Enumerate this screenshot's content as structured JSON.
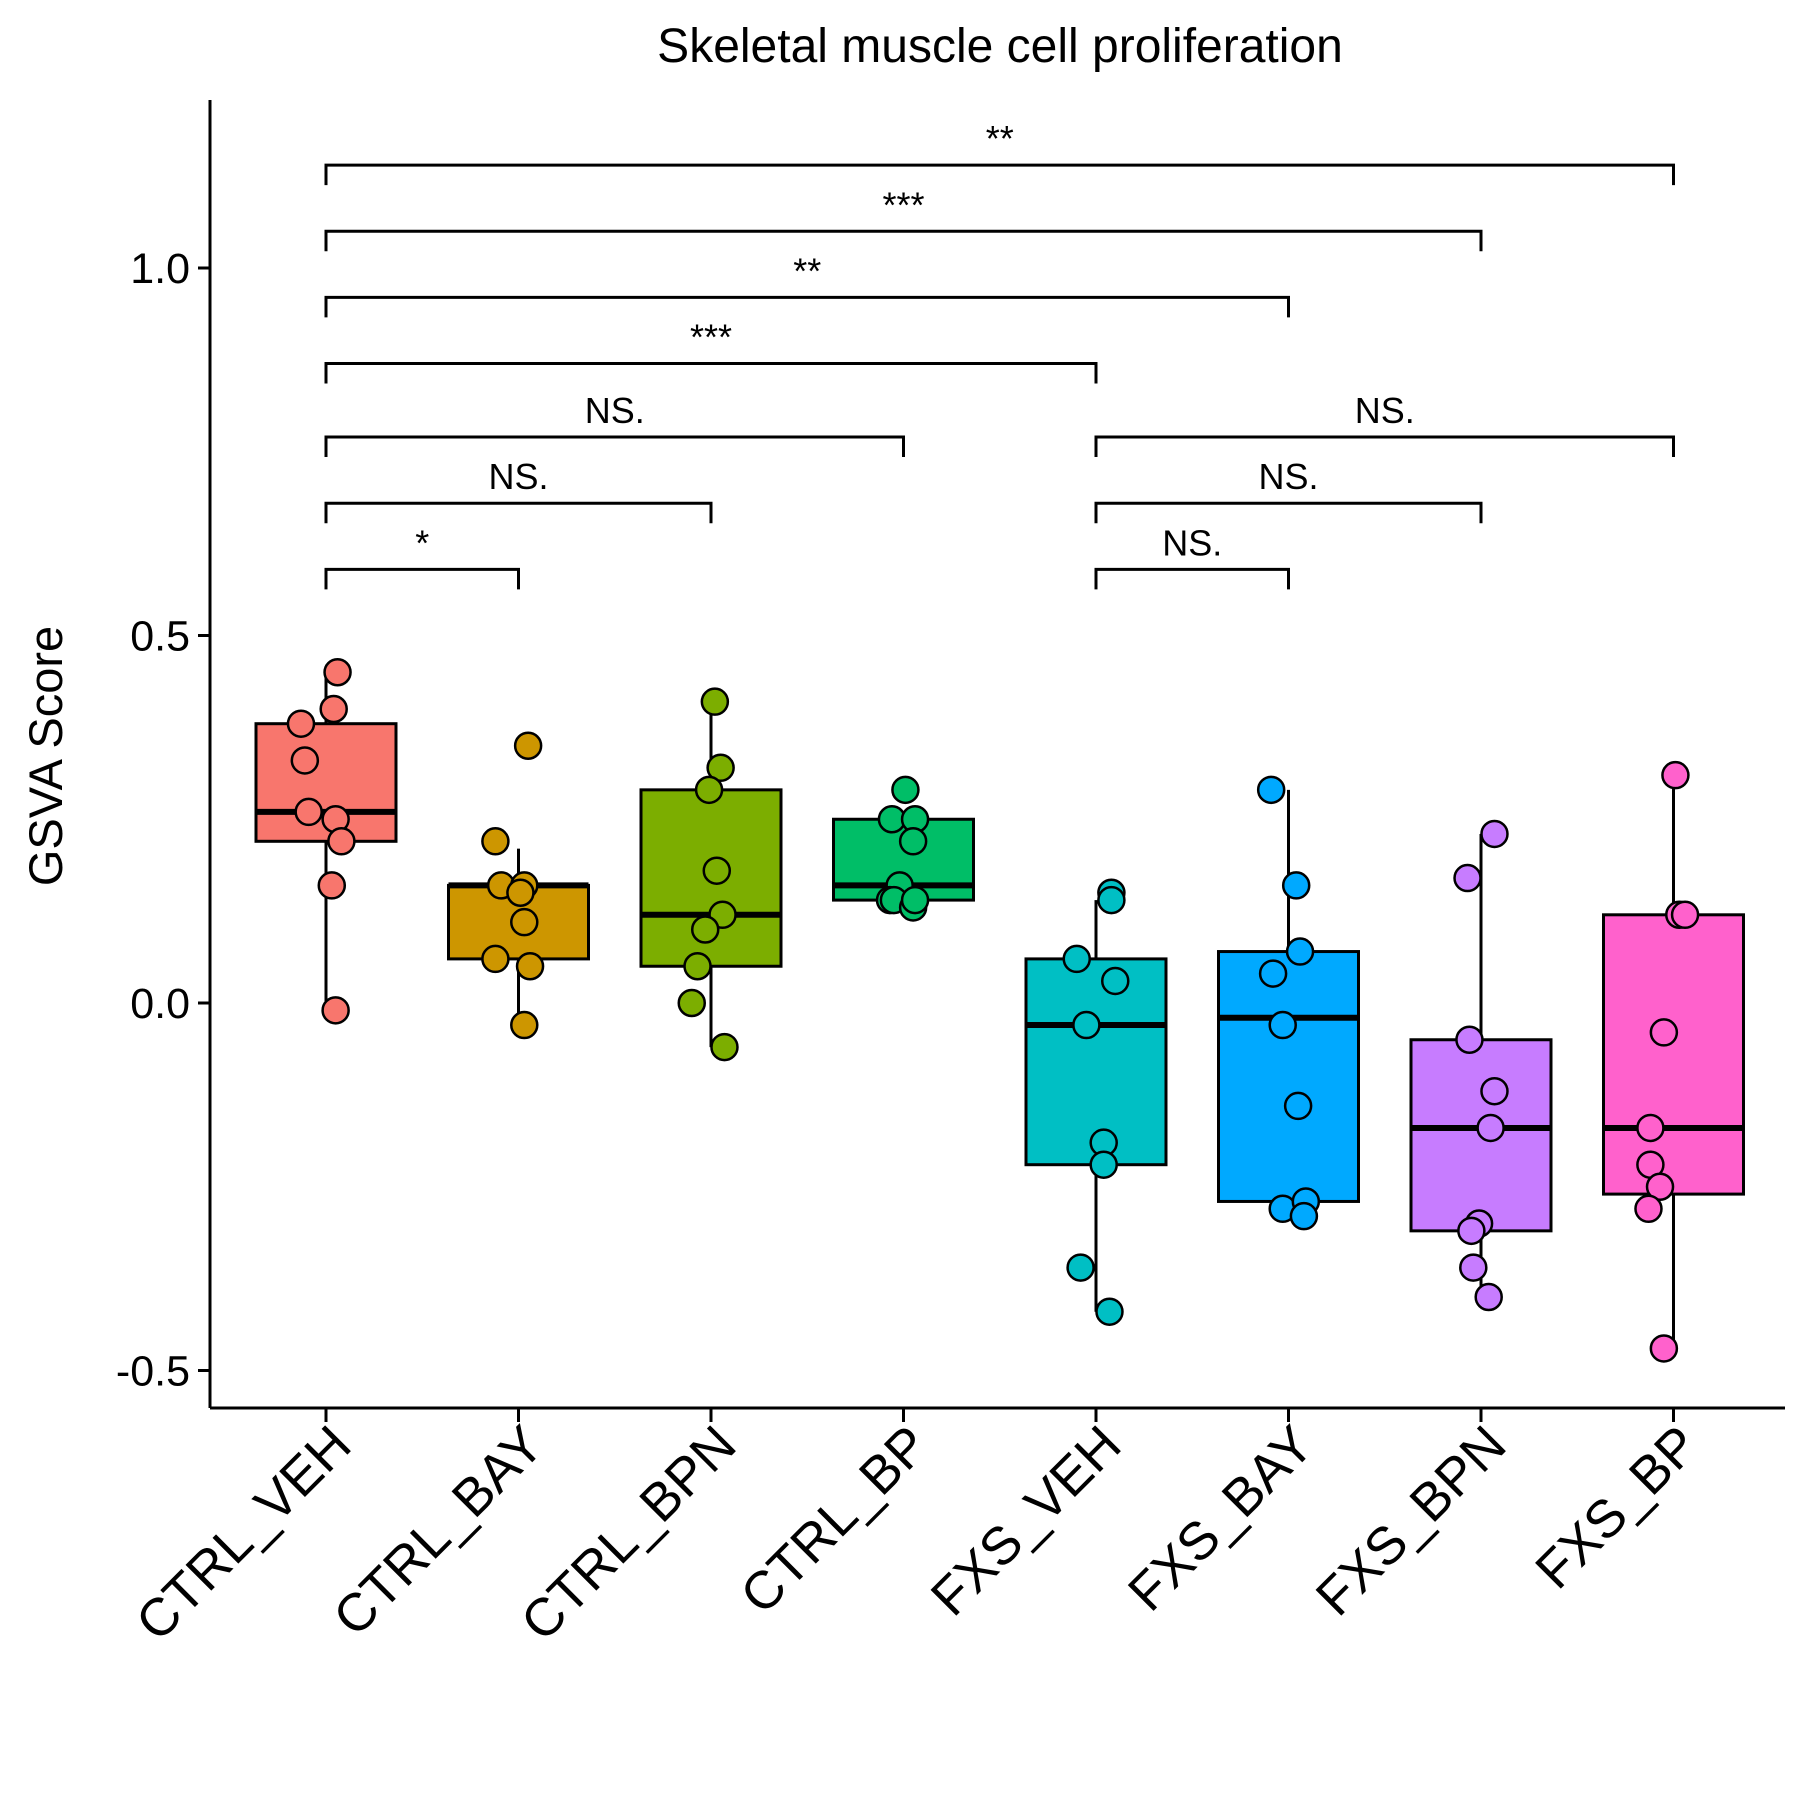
{
  "chart_data": {
    "type": "box",
    "title": "Skeletal muscle cell proliferation",
    "ylabel": "GSVA Score",
    "xlabel": "",
    "ylim": [
      -0.55,
      1.22
    ],
    "yticks": [
      -0.5,
      0.0,
      0.5,
      1.0
    ],
    "ytick_labels": [
      "-0.5",
      "0.0",
      "0.5",
      "1.0"
    ],
    "grid": false,
    "legend": "none",
    "categories": [
      "CTRL_VEH",
      "CTRL_BAY",
      "CTRL_BPN",
      "CTRL_BP",
      "FXS_VEH",
      "FXS_BAY",
      "FXS_BPN",
      "FXS_BP"
    ],
    "groups": [
      {
        "name": "CTRL_VEH",
        "color": "#F8766D",
        "whisker_low": -0.01,
        "q1": 0.22,
        "median": 0.26,
        "q3": 0.38,
        "whisker_high": 0.45,
        "points": [
          [
            -0.13,
            0.38
          ],
          [
            -0.11,
            0.33
          ],
          [
            -0.09,
            0.26
          ],
          [
            0.06,
            0.45
          ],
          [
            0.04,
            0.4
          ],
          [
            0.05,
            0.25
          ],
          [
            0.08,
            0.22
          ],
          [
            0.03,
            0.16
          ],
          [
            0.05,
            -0.01
          ]
        ]
      },
      {
        "name": "CTRL_BAY",
        "color": "#CD9600",
        "whisker_low": -0.03,
        "q1": 0.06,
        "median": 0.16,
        "q3": 0.16,
        "whisker_high": 0.21,
        "points": [
          [
            0.05,
            0.35
          ],
          [
            -0.12,
            0.22
          ],
          [
            -0.09,
            0.16
          ],
          [
            0.03,
            0.16
          ],
          [
            0.01,
            0.15
          ],
          [
            0.03,
            0.11
          ],
          [
            -0.12,
            0.06
          ],
          [
            0.06,
            0.05
          ],
          [
            0.03,
            -0.03
          ]
        ]
      },
      {
        "name": "CTRL_BPN",
        "color": "#7CAE00",
        "whisker_low": -0.06,
        "q1": 0.05,
        "median": 0.12,
        "q3": 0.29,
        "whisker_high": 0.4,
        "points": [
          [
            0.02,
            0.41
          ],
          [
            0.05,
            0.32
          ],
          [
            -0.01,
            0.29
          ],
          [
            0.03,
            0.18
          ],
          [
            0.06,
            0.12
          ],
          [
            -0.03,
            0.1
          ],
          [
            -0.07,
            0.05
          ],
          [
            -0.1,
            0.0
          ],
          [
            0.07,
            -0.06
          ]
        ]
      },
      {
        "name": "CTRL_BP",
        "color": "#00BE67",
        "whisker_low": 0.14,
        "q1": 0.14,
        "median": 0.16,
        "q3": 0.25,
        "whisker_high": 0.25,
        "points": [
          [
            0.01,
            0.29
          ],
          [
            -0.06,
            0.25
          ],
          [
            0.06,
            0.25
          ],
          [
            0.05,
            0.22
          ],
          [
            -0.02,
            0.16
          ],
          [
            -0.07,
            0.14
          ],
          [
            -0.05,
            0.14
          ],
          [
            0.05,
            0.13
          ],
          [
            0.06,
            0.14
          ]
        ]
      },
      {
        "name": "FXS_VEH",
        "color": "#00BFC4",
        "whisker_low": -0.42,
        "q1": -0.22,
        "median": -0.03,
        "q3": 0.06,
        "whisker_high": 0.14,
        "points": [
          [
            0.08,
            0.15
          ],
          [
            0.08,
            0.14
          ],
          [
            -0.1,
            0.06
          ],
          [
            0.1,
            0.03
          ],
          [
            -0.05,
            -0.03
          ],
          [
            0.04,
            -0.19
          ],
          [
            0.04,
            -0.22
          ],
          [
            -0.08,
            -0.36
          ],
          [
            0.07,
            -0.42
          ]
        ]
      },
      {
        "name": "FXS_BAY",
        "color": "#00A9FF",
        "whisker_low": -0.27,
        "q1": -0.27,
        "median": -0.02,
        "q3": 0.07,
        "whisker_high": 0.29,
        "points": [
          [
            -0.09,
            0.29
          ],
          [
            0.04,
            0.16
          ],
          [
            0.06,
            0.07
          ],
          [
            -0.08,
            0.04
          ],
          [
            -0.03,
            -0.03
          ],
          [
            0.05,
            -0.14
          ],
          [
            -0.03,
            -0.28
          ],
          [
            0.09,
            -0.27
          ],
          [
            0.08,
            -0.29
          ]
        ]
      },
      {
        "name": "FXS_BPN",
        "color": "#C77CFF",
        "whisker_low": -0.39,
        "q1": -0.31,
        "median": -0.17,
        "q3": -0.05,
        "whisker_high": 0.23,
        "points": [
          [
            0.07,
            0.23
          ],
          [
            -0.07,
            0.17
          ],
          [
            -0.06,
            -0.05
          ],
          [
            0.07,
            -0.12
          ],
          [
            0.05,
            -0.17
          ],
          [
            -0.01,
            -0.3
          ],
          [
            -0.05,
            -0.31
          ],
          [
            -0.04,
            -0.36
          ],
          [
            0.04,
            -0.4
          ]
        ]
      },
      {
        "name": "FXS_BP",
        "color": "#FF61CC",
        "whisker_low": -0.47,
        "q1": -0.26,
        "median": -0.17,
        "q3": 0.12,
        "whisker_high": 0.31,
        "points": [
          [
            0.01,
            0.31
          ],
          [
            0.03,
            0.12
          ],
          [
            0.06,
            0.12
          ],
          [
            -0.05,
            -0.04
          ],
          [
            -0.12,
            -0.17
          ],
          [
            -0.12,
            -0.22
          ],
          [
            -0.07,
            -0.25
          ],
          [
            -0.13,
            -0.28
          ],
          [
            -0.05,
            -0.47
          ]
        ]
      }
    ],
    "comparisons": [
      {
        "from": "CTRL_VEH",
        "to": "CTRL_BAY",
        "label": "*",
        "y": 0.59
      },
      {
        "from": "CTRL_VEH",
        "to": "CTRL_BPN",
        "label": "NS.",
        "y": 0.68
      },
      {
        "from": "CTRL_VEH",
        "to": "CTRL_BP",
        "label": "NS.",
        "y": 0.77
      },
      {
        "from": "CTRL_VEH",
        "to": "FXS_VEH",
        "label": "***",
        "y": 0.87
      },
      {
        "from": "CTRL_VEH",
        "to": "FXS_BAY",
        "label": "**",
        "y": 0.96
      },
      {
        "from": "CTRL_VEH",
        "to": "FXS_BPN",
        "label": "***",
        "y": 1.05
      },
      {
        "from": "CTRL_VEH",
        "to": "FXS_BP",
        "label": "**",
        "y": 1.14
      },
      {
        "from": "FXS_VEH",
        "to": "FXS_BAY",
        "label": "NS.",
        "y": 0.59
      },
      {
        "from": "FXS_VEH",
        "to": "FXS_BPN",
        "label": "NS.",
        "y": 0.68
      },
      {
        "from": "FXS_VEH",
        "to": "FXS_BP",
        "label": "NS.",
        "y": 0.77
      }
    ]
  }
}
